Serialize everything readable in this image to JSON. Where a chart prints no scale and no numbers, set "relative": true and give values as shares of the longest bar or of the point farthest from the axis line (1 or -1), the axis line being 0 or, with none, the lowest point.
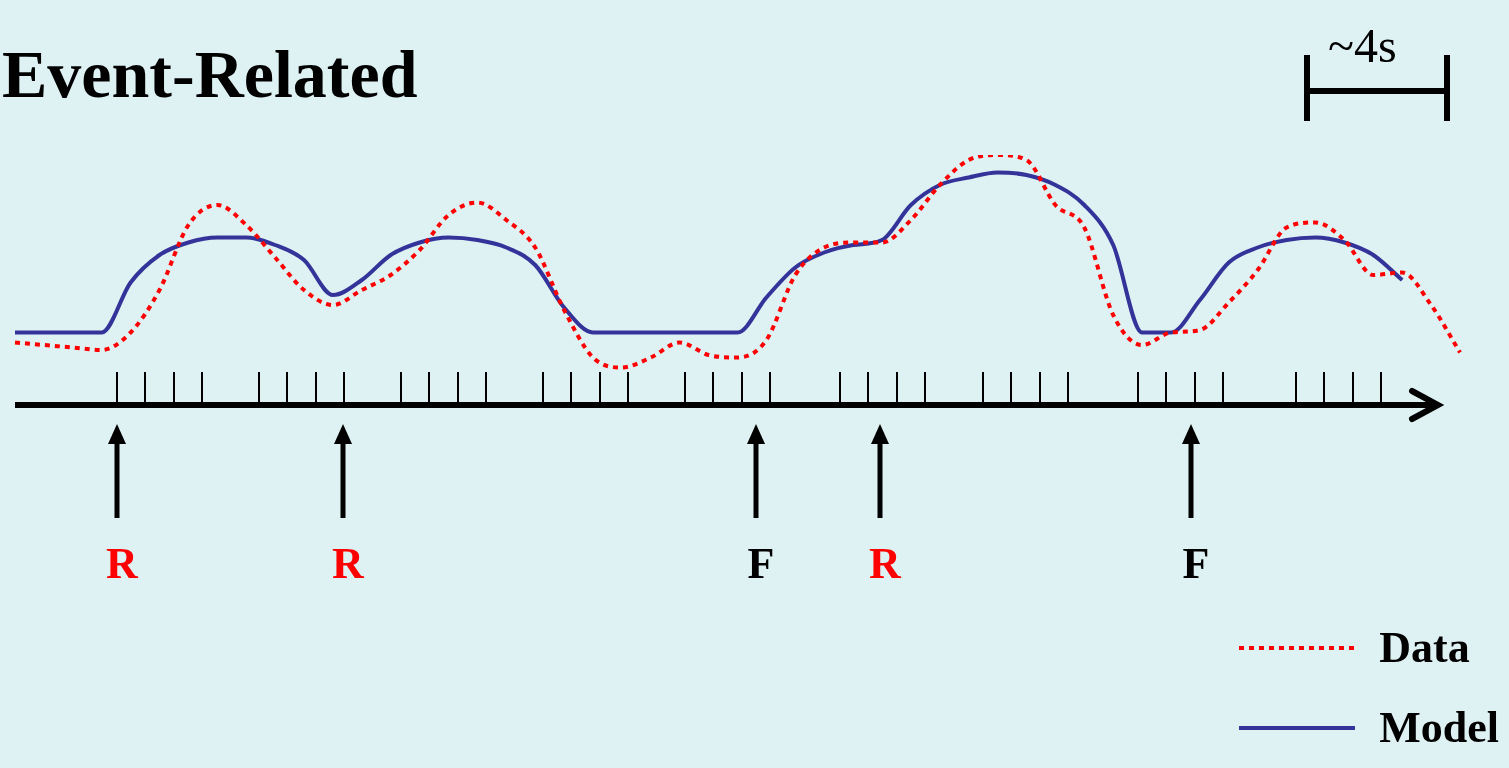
{
  "chart_data": {
    "type": "line",
    "title": "Event-Related",
    "relative": true,
    "marker": "none",
    "legend": "bottom right",
    "categories": [
      null,
      null,
      null,
      null,
      null,
      null,
      null,
      null,
      null,
      null,
      null,
      null,
      null,
      null,
      null,
      null,
      null,
      null,
      null,
      null,
      null,
      null,
      null,
      null,
      null,
      null,
      null,
      null,
      null,
      null,
      null,
      null,
      null,
      null,
      null,
      null,
      null,
      null,
      null,
      null,
      null,
      null,
      null,
      null,
      null,
      null,
      null,
      null,
      null,
      null,
      null
    ],
    "series": [
      {
        "name": "Data",
        "color": "#ff0000",
        "line_style": "dotted",
        "values": [
          0.25,
          0.24,
          0.23,
          0.22,
          0.29,
          0.46,
          0.72,
          0.8,
          0.72,
          0.59,
          0.46,
          0.4,
          0.46,
          0.52,
          0.62,
          0.76,
          0.81,
          0.74,
          0.63,
          0.38,
          0.19,
          0.15,
          0.19,
          0.25,
          0.2,
          0.19,
          0.26,
          0.52,
          0.63,
          0.65,
          0.65,
          0.74,
          0.88,
          0.98,
          1,
          0.98,
          0.8,
          0.71,
          0.36,
          0.24,
          0.29,
          0.3,
          0.41,
          0.54,
          0.71,
          0.73,
          0.66,
          0.52,
          0.53,
          0.4,
          0.21
        ]
      },
      {
        "name": "Model",
        "color": "#333399",
        "line_style": "solid",
        "values": [
          0.29,
          0.29,
          0.29,
          0.29,
          0.49,
          0.6,
          0.65,
          0.67,
          0.67,
          0.64,
          0.58,
          0.44,
          0.5,
          0.6,
          0.65,
          0.67,
          0.66,
          0.63,
          0.56,
          0.39,
          0.29,
          0.29,
          0.29,
          0.29,
          0.29,
          0.29,
          0.43,
          0.55,
          0.61,
          0.64,
          0.66,
          0.8,
          0.88,
          0.91,
          0.93,
          0.92,
          0.88,
          0.8,
          0.64,
          0.29,
          0.29,
          0.42,
          0.57,
          0.63,
          0.66,
          0.67,
          0.65,
          0.6,
          0.5,
          null,
          null
        ]
      }
    ],
    "annotations": [
      "R",
      "R",
      "F",
      "R",
      "F",
      "~4s"
    ]
  }
}
